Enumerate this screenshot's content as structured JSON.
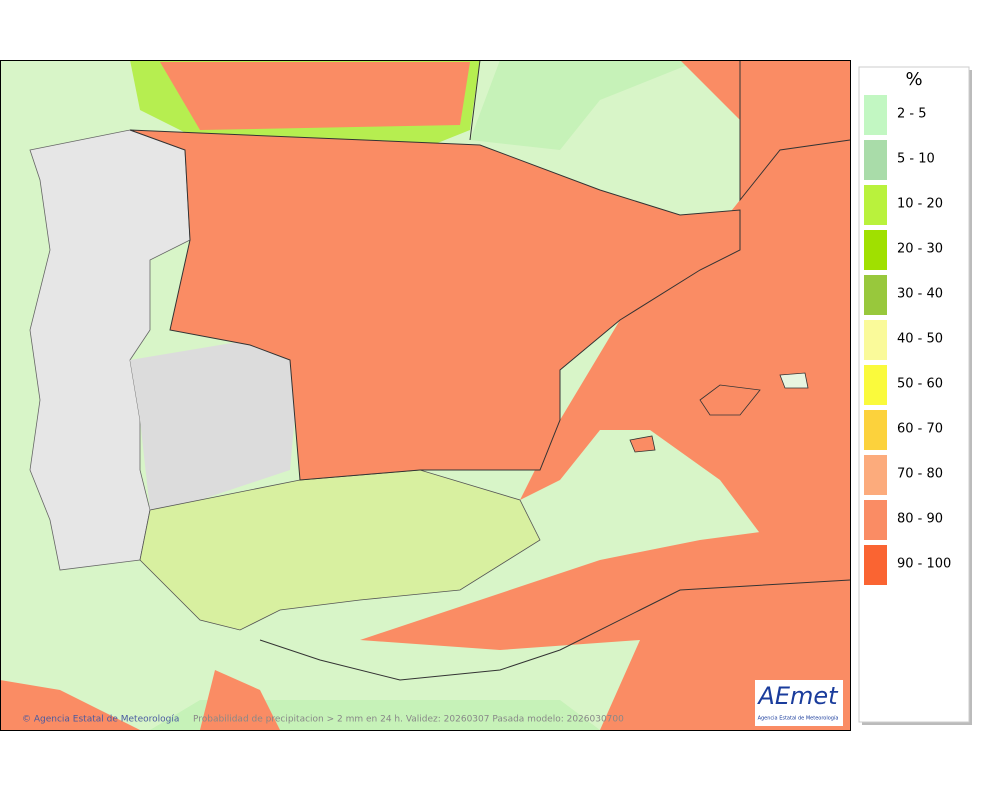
{
  "legend": {
    "title": "%",
    "items": [
      {
        "label": "2 - 5",
        "color": "#c2f7c2"
      },
      {
        "label": "5 - 10",
        "color": "#a9dca9"
      },
      {
        "label": "10 - 20",
        "color": "#b9f23c"
      },
      {
        "label": "20 - 30",
        "color": "#a0e000"
      },
      {
        "label": "30 - 40",
        "color": "#98c83c"
      },
      {
        "label": "40 - 50",
        "color": "#fafa9a"
      },
      {
        "label": "50 - 60",
        "color": "#fafa3c"
      },
      {
        "label": "60 - 70",
        "color": "#fcd23c"
      },
      {
        "label": "70 - 80",
        "color": "#fcab7c"
      },
      {
        "label": "80 - 90",
        "color": "#fa8c64"
      },
      {
        "label": "90 - 100",
        "color": "#fa6432"
      }
    ]
  },
  "footer": {
    "credit": "© Agencia Estatal de Meteorología",
    "caption": "Probabilidad de precipitacion > 2 mm en 24 h. Validez: 20260307 Pasada modelo: 2026030700"
  },
  "logo": {
    "name": "AEmet",
    "subtitle": "Agencia Estatal de Meteorología"
  }
}
